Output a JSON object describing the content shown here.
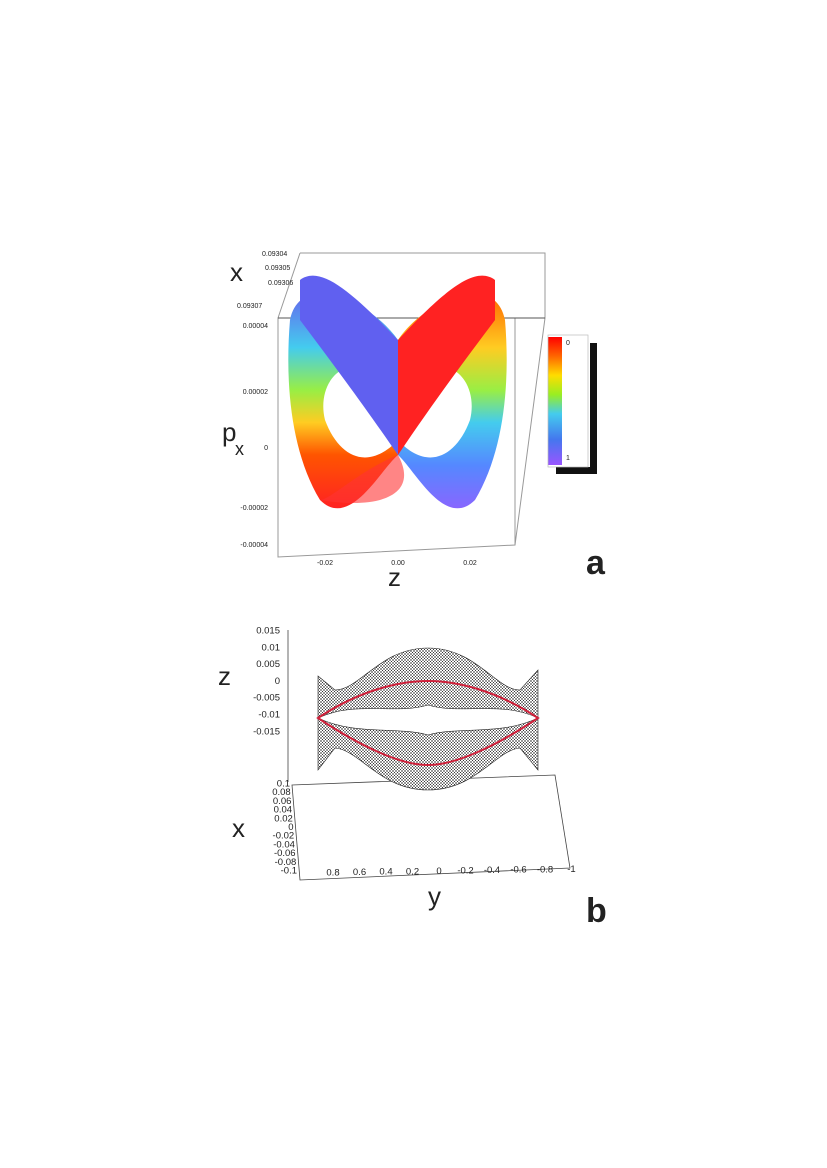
{
  "panel_a": {
    "letter": "a",
    "x_label": "x",
    "px_label": "p",
    "px_subscript": "x",
    "z_label": "z",
    "x_ticks": [
      "0.09304",
      "0.09305",
      "0.09306",
      "0.09307"
    ],
    "px_ticks": [
      "0.00004",
      "0.00002",
      "0",
      "-0.00002",
      "-0.00004"
    ],
    "z_ticks": [
      "-0.02",
      "0.00",
      "0.02"
    ],
    "colorbar_labels": [
      "0",
      "1"
    ]
  },
  "panel_b": {
    "letter": "b",
    "z_label": "z",
    "x_label": "x",
    "y_label": "y",
    "z_ticks": [
      "0.015",
      "0.01",
      "0.005",
      "0",
      "-0.005",
      "-0.01",
      "-0.015"
    ],
    "x_ticks": [
      "0.1",
      "0.08",
      "0.06",
      "0.04",
      "0.02",
      "0",
      "-0.02",
      "-0.04",
      "-0.06",
      "-0.08",
      "-0.1"
    ],
    "y_ticks": [
      "0.8",
      "0.6",
      "0.4",
      "0.2",
      "0",
      "-0.2",
      "-0.4",
      "-0.6",
      "-0.8",
      "-1"
    ]
  }
}
